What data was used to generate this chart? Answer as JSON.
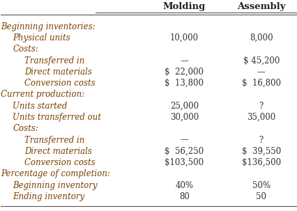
{
  "col_headers": [
    "",
    "Molding",
    "Assembly"
  ],
  "rows": [
    {
      "label": "Beginning inventories:",
      "indent": 0,
      "molding": "",
      "assembly": "",
      "bold_label": false
    },
    {
      "label": "Physical units",
      "indent": 1,
      "molding": "10,000",
      "assembly": "8,000",
      "bold_label": false
    },
    {
      "label": "Costs:",
      "indent": 1,
      "molding": "",
      "assembly": "",
      "bold_label": false
    },
    {
      "label": "Transferred in",
      "indent": 2,
      "molding": "—",
      "assembly": "$ 45,200",
      "bold_label": false
    },
    {
      "label": "Direct materials",
      "indent": 2,
      "molding": "$  22,000",
      "assembly": "—",
      "bold_label": false
    },
    {
      "label": "Conversion costs",
      "indent": 2,
      "molding": "$  13,800",
      "assembly": "$  16,800",
      "bold_label": false
    },
    {
      "label": "Current production:",
      "indent": 0,
      "molding": "",
      "assembly": "",
      "bold_label": false
    },
    {
      "label": "Units started",
      "indent": 1,
      "molding": "25,000",
      "assembly": "?",
      "bold_label": false
    },
    {
      "label": "Units transferred out",
      "indent": 1,
      "molding": "30,000",
      "assembly": "35,000",
      "bold_label": false
    },
    {
      "label": "Costs:",
      "indent": 1,
      "molding": "",
      "assembly": "",
      "bold_label": false
    },
    {
      "label": "Transferred in",
      "indent": 2,
      "molding": "—",
      "assembly": "?",
      "bold_label": false
    },
    {
      "label": "Direct materials",
      "indent": 2,
      "molding": "$  56,250",
      "assembly": "$  39,550",
      "bold_label": false
    },
    {
      "label": "Conversion costs",
      "indent": 2,
      "molding": "$103,500",
      "assembly": "$136,500",
      "bold_label": false
    },
    {
      "label": "Percentage of completion:",
      "indent": 0,
      "molding": "",
      "assembly": "",
      "bold_label": false
    },
    {
      "label": "Beginning inventory",
      "indent": 1,
      "molding": "40%",
      "assembly": "50%",
      "bold_label": false
    },
    {
      "label": "Ending inventory",
      "indent": 1,
      "molding": "80",
      "assembly": "50",
      "bold_label": false
    }
  ],
  "bg_color": "#ffffff",
  "text_color": "#333333",
  "header_color": "#222222",
  "label_color": "#7B3F00",
  "line_color": "#555555",
  "font_size": 8.5,
  "header_font_size": 9.5,
  "indent_sizes": [
    0,
    0.04,
    0.08
  ]
}
